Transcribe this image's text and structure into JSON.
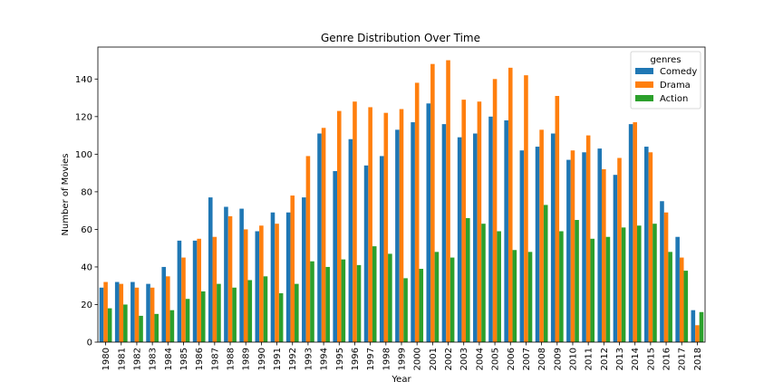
{
  "chart_data": {
    "type": "bar",
    "title": "Genre Distribution Over Time",
    "xlabel": "Year",
    "ylabel": "Number of Movies",
    "ylim": [
      0,
      157
    ],
    "yticks": [
      0,
      20,
      40,
      60,
      80,
      100,
      120,
      140
    ],
    "grid": false,
    "legend": {
      "title": "genres",
      "placement": "top-right"
    },
    "categories": [
      "1980",
      "1981",
      "1982",
      "1983",
      "1984",
      "1985",
      "1986",
      "1987",
      "1988",
      "1989",
      "1990",
      "1991",
      "1992",
      "1993",
      "1994",
      "1995",
      "1996",
      "1997",
      "1998",
      "1999",
      "2000",
      "2001",
      "2002",
      "2003",
      "2004",
      "2005",
      "2006",
      "2007",
      "2008",
      "2009",
      "2010",
      "2011",
      "2012",
      "2013",
      "2014",
      "2015",
      "2016",
      "2017",
      "2018"
    ],
    "series": [
      {
        "name": "Comedy",
        "color": "#1f77b4",
        "values": [
          29,
          32,
          32,
          31,
          40,
          54,
          54,
          77,
          72,
          71,
          59,
          69,
          69,
          77,
          111,
          91,
          108,
          94,
          99,
          113,
          117,
          127,
          116,
          109,
          111,
          120,
          118,
          102,
          104,
          111,
          97,
          101,
          103,
          89,
          116,
          104,
          75,
          56,
          17
        ]
      },
      {
        "name": "Drama",
        "color": "#ff7f0e",
        "values": [
          32,
          31,
          29,
          29,
          35,
          45,
          55,
          56,
          67,
          60,
          62,
          63,
          78,
          99,
          114,
          123,
          128,
          125,
          122,
          124,
          138,
          148,
          150,
          129,
          128,
          140,
          146,
          142,
          113,
          131,
          102,
          110,
          92,
          98,
          117,
          101,
          69,
          45,
          9
        ]
      },
      {
        "name": "Action",
        "color": "#2ca02c",
        "values": [
          18,
          20,
          14,
          15,
          17,
          23,
          27,
          31,
          29,
          33,
          35,
          26,
          31,
          43,
          40,
          44,
          41,
          51,
          47,
          34,
          39,
          48,
          45,
          66,
          63,
          59,
          49,
          48,
          73,
          59,
          65,
          55,
          56,
          61,
          62,
          63,
          48,
          38,
          16
        ]
      }
    ]
  }
}
